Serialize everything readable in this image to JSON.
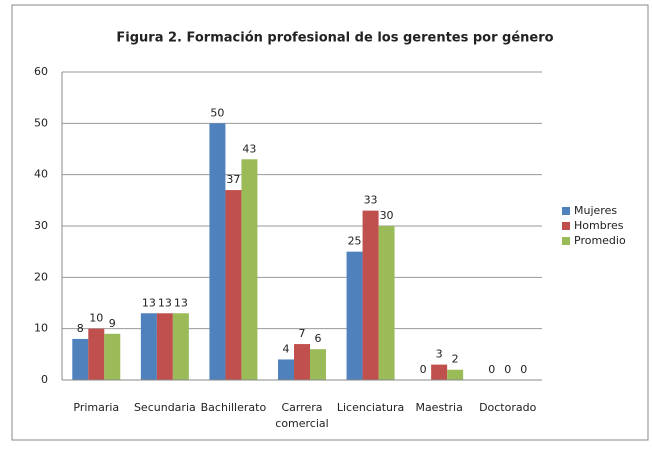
{
  "chart_data": {
    "type": "bar",
    "title": "Figura 2. Formación profesional de los gerentes por género",
    "categories": [
      "Primaria",
      "Secundaria",
      "Bachillerato",
      "Carrera comercial",
      "Licenciatura",
      "Maestria",
      "Doctorado"
    ],
    "series": [
      {
        "name": "Mujeres",
        "color": "#4f81bd",
        "values": [
          8,
          13,
          50,
          4,
          25,
          0,
          0
        ]
      },
      {
        "name": "Hombres",
        "color": "#c0504d",
        "values": [
          10,
          13,
          37,
          7,
          33,
          3,
          0
        ]
      },
      {
        "name": "Promedio",
        "color": "#9bbb59",
        "values": [
          9,
          13,
          43,
          6,
          30,
          2,
          0
        ]
      }
    ],
    "ylim": [
      0,
      60
    ],
    "yticks": [
      0,
      10,
      20,
      30,
      40,
      50,
      60
    ],
    "grid": true,
    "legend": "right"
  }
}
